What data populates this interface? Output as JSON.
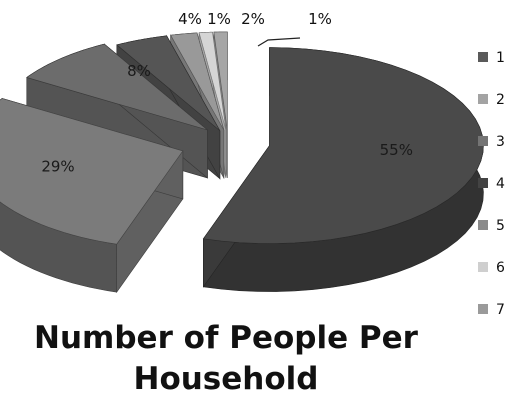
{
  "chart_data": {
    "type": "pie",
    "title": [
      "Number of People Per",
      "Household"
    ],
    "labels": [
      "1",
      "2",
      "3",
      "4",
      "5",
      "6",
      "7"
    ],
    "values": [
      55,
      29,
      8,
      4,
      2,
      1,
      1
    ],
    "value_labels": [
      "55%",
      "29%",
      "8%",
      "4%",
      "2%",
      "1%",
      "1%"
    ],
    "legend_position": "right",
    "exploded": true,
    "style": "3d"
  },
  "colors": {
    "slices": [
      "#4a4a4a",
      "#7b7b7b",
      "#6c6c6c",
      "#555555",
      "#999999",
      "#d5d5d5",
      "#a6a6a6"
    ],
    "legend": [
      "#5a5a5a",
      "#a3a3a3",
      "#747474",
      "#434343",
      "#8a8a8a",
      "#cfcfcf",
      "#9a9a9a"
    ]
  }
}
